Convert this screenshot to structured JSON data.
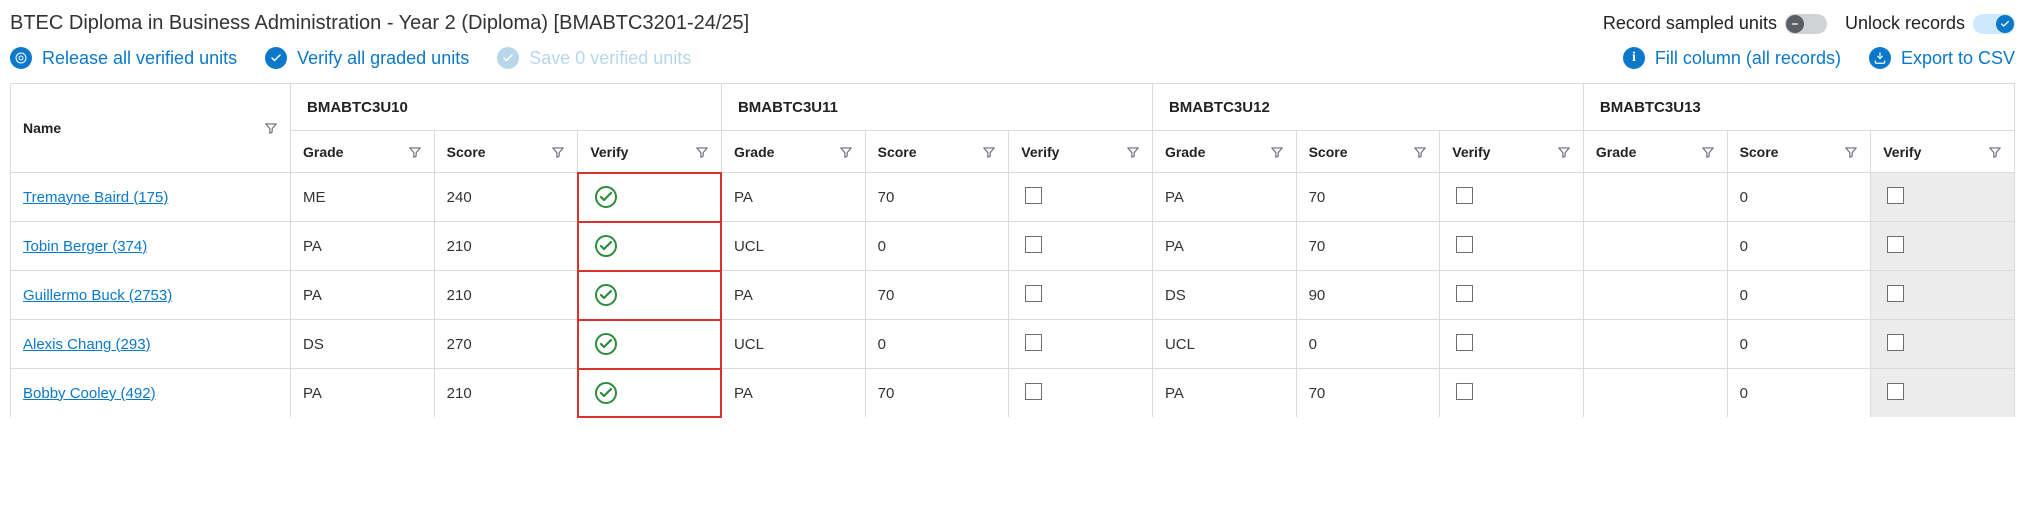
{
  "header": {
    "title": "BTEC Diploma in Business Administration - Year 2 (Diploma) [BMABTC3201-24/25]",
    "toggles": {
      "record_sampled_label": "Record sampled units",
      "record_sampled_on": false,
      "unlock_records_label": "Unlock records",
      "unlock_records_on": true
    }
  },
  "actions": {
    "release_all": "Release all verified units",
    "verify_all": "Verify all graded units",
    "save_verified": "Save 0 verified units",
    "fill_column": "Fill column (all records)",
    "export_csv": "Export to CSV"
  },
  "table": {
    "name_header": "Name",
    "units": [
      {
        "code": "BMABTC3U10",
        "cols": [
          "Grade",
          "Score",
          "Verify"
        ],
        "highlight_verify": true
      },
      {
        "code": "BMABTC3U11",
        "cols": [
          "Grade",
          "Score",
          "Verify"
        ],
        "highlight_verify": false
      },
      {
        "code": "BMABTC3U12",
        "cols": [
          "Grade",
          "Score",
          "Verify"
        ],
        "highlight_verify": false
      },
      {
        "code": "BMABTC3U13",
        "cols": [
          "Grade",
          "Score",
          "Verify"
        ],
        "highlight_verify": false,
        "grey_verify": true
      }
    ],
    "rows": [
      {
        "name": "Tremayne Baird (175)",
        "cells": [
          {
            "grade": "ME",
            "score": "240",
            "verify": "checked"
          },
          {
            "grade": "PA",
            "score": "70",
            "verify": "box"
          },
          {
            "grade": "PA",
            "score": "70",
            "verify": "box"
          },
          {
            "grade": "",
            "score": "0",
            "verify": "box-grey"
          }
        ]
      },
      {
        "name": "Tobin Berger (374)",
        "cells": [
          {
            "grade": "PA",
            "score": "210",
            "verify": "checked"
          },
          {
            "grade": "UCL",
            "score": "0",
            "verify": "box"
          },
          {
            "grade": "PA",
            "score": "70",
            "verify": "box"
          },
          {
            "grade": "",
            "score": "0",
            "verify": "box-grey"
          }
        ]
      },
      {
        "name": "Guillermo Buck (2753)",
        "cells": [
          {
            "grade": "PA",
            "score": "210",
            "verify": "checked"
          },
          {
            "grade": "PA",
            "score": "70",
            "verify": "box"
          },
          {
            "grade": "DS",
            "score": "90",
            "verify": "box"
          },
          {
            "grade": "",
            "score": "0",
            "verify": "box-grey"
          }
        ]
      },
      {
        "name": "Alexis Chang (293)",
        "cells": [
          {
            "grade": "DS",
            "score": "270",
            "verify": "checked"
          },
          {
            "grade": "UCL",
            "score": "0",
            "verify": "box"
          },
          {
            "grade": "UCL",
            "score": "0",
            "verify": "box"
          },
          {
            "grade": "",
            "score": "0",
            "verify": "box-grey"
          }
        ]
      },
      {
        "name": "Bobby Cooley (492)",
        "cells": [
          {
            "grade": "PA",
            "score": "210",
            "verify": "checked"
          },
          {
            "grade": "PA",
            "score": "70",
            "verify": "box"
          },
          {
            "grade": "PA",
            "score": "70",
            "verify": "box"
          },
          {
            "grade": "",
            "score": "0",
            "verify": "box-grey"
          }
        ]
      }
    ]
  },
  "colors": {
    "link": "#0b78c9",
    "disabled": "#b9d6ea",
    "border": "#d9dcdf",
    "verify_green": "#2e8b3d",
    "highlight_red": "#d8332a",
    "grey_cell": "#ececec"
  }
}
